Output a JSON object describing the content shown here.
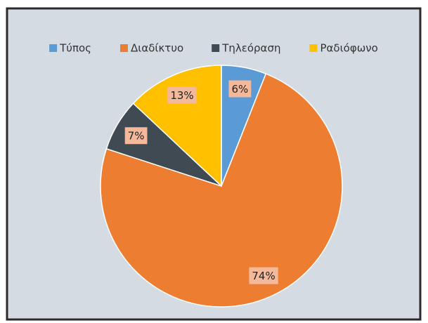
{
  "chart_data": {
    "type": "pie",
    "categories": [
      "Τύπος",
      "Διαδίκτυο",
      "Τηλεόραση",
      "Ραδιόφωνο"
    ],
    "values": [
      6,
      74,
      7,
      13
    ],
    "value_labels": [
      "6%",
      "74%",
      "7%",
      "13%"
    ],
    "colors": [
      "#5b9bd5",
      "#ed7d31",
      "#3f4a52",
      "#ffc000"
    ],
    "legend": "top"
  }
}
